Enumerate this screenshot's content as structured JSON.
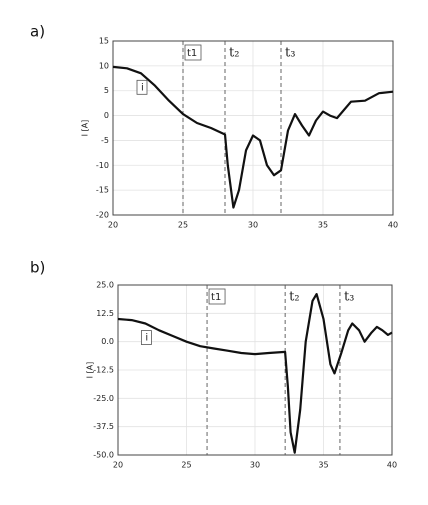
{
  "chart_data": [
    {
      "type": "line",
      "panel": "a)",
      "ylabel": "I [A]",
      "x": [
        20,
        21,
        22,
        23,
        24,
        25,
        26,
        27,
        28,
        28.2,
        28.6,
        29,
        29.5,
        30,
        30.5,
        31,
        31.5,
        32,
        32.5,
        33,
        33.5,
        34,
        34.5,
        35,
        35.5,
        36,
        37,
        38,
        39,
        40
      ],
      "series": [
        {
          "name": "i",
          "color": "#111111",
          "values": [
            9.8,
            9.5,
            8.5,
            6,
            3,
            0.3,
            -1.5,
            -2.5,
            -3.8,
            -10,
            -18.5,
            -15,
            -7,
            -4,
            -5,
            -10,
            -12,
            -11,
            -3,
            0.3,
            -2,
            -4,
            -1,
            0.8,
            0,
            -0.5,
            2.8,
            3,
            4.5,
            4.8
          ]
        }
      ],
      "xlim": [
        20,
        40
      ],
      "xticks": [
        20,
        25,
        30,
        35,
        40
      ],
      "ylim": [
        -20,
        15
      ],
      "yticks": [
        -20,
        -15,
        -10,
        -5,
        0,
        5,
        10,
        15
      ],
      "grid": true,
      "markers": [
        {
          "label": "t1",
          "x": 25,
          "box": true
        },
        {
          "label": "t₂",
          "x": 28
        },
        {
          "label": "t₃",
          "x": 32
        }
      ]
    },
    {
      "type": "line",
      "panel": "b)",
      "ylabel": "I [A]",
      "x": [
        20,
        21,
        22,
        23,
        24,
        25,
        26,
        27,
        28,
        29,
        30,
        31,
        32.2,
        32.4,
        32.6,
        32.9,
        33.3,
        33.7,
        34.2,
        34.5,
        35,
        35.5,
        35.8,
        36.3,
        36.8,
        37.1,
        37.6,
        38,
        38.5,
        38.9,
        39.3,
        39.7,
        40
      ],
      "series": [
        {
          "name": "i",
          "color": "#111111",
          "values": [
            10,
            9.5,
            8,
            5,
            2.5,
            0,
            -2,
            -3,
            -4,
            -5,
            -5.5,
            -5,
            -4.5,
            -20,
            -40,
            -49,
            -30,
            0,
            18,
            21,
            10,
            -10,
            -14,
            -5,
            5,
            8,
            5,
            0,
            4,
            6.5,
            5,
            3,
            4
          ]
        }
      ],
      "xlim": [
        20,
        40
      ],
      "xticks": [
        20,
        25,
        30,
        35,
        40
      ],
      "ylim": [
        -50,
        25
      ],
      "yticks": [
        {
          "value": -50,
          "label": "-50.0"
        },
        {
          "value": -37.5,
          "label": "-37.5"
        },
        {
          "value": -25,
          "label": "-25.0"
        },
        {
          "value": -12.5,
          "label": "-12.5"
        },
        {
          "value": 0,
          "label": "0.0"
        },
        {
          "value": 12.5,
          "label": "12.5"
        },
        {
          "value": 25,
          "label": "25.0"
        }
      ],
      "grid": true,
      "markers": [
        {
          "label": "t1",
          "x": 26.5,
          "box": true
        },
        {
          "label": "t₂",
          "x": 32.2
        },
        {
          "label": "t₃",
          "x": 36.2
        }
      ]
    }
  ]
}
